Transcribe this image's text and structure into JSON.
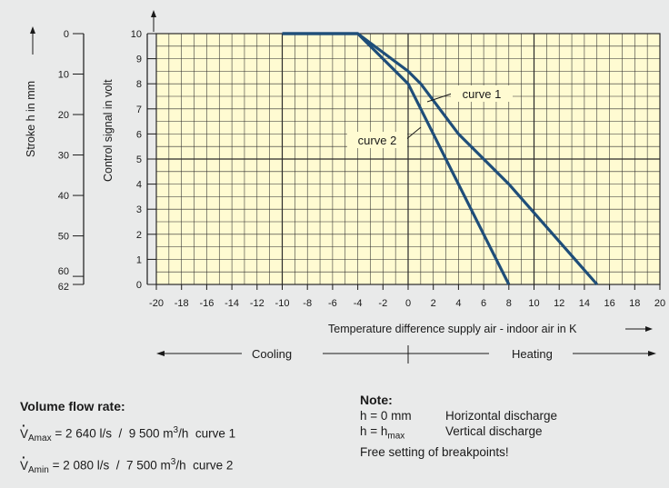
{
  "chart_data": {
    "type": "line",
    "xlabel": "Temperature difference supply air - indoor air in K",
    "ylabel": "Control signal in volt",
    "y2label": "Stroke h in mm",
    "xlim": [
      -20,
      20
    ],
    "ylim": [
      0,
      10
    ],
    "xticks": [
      -20,
      -18,
      -16,
      -14,
      -12,
      -10,
      -8,
      -6,
      -4,
      -2,
      0,
      2,
      4,
      6,
      8,
      10,
      12,
      14,
      16,
      18,
      20
    ],
    "yticks": [
      0,
      1,
      2,
      3,
      4,
      5,
      6,
      7,
      8,
      9,
      10
    ],
    "stroke_ticks": [
      "0",
      "10",
      "20",
      "30",
      "40",
      "50",
      "60",
      "62"
    ],
    "grid": true,
    "series": [
      {
        "name": "curve 1",
        "points": [
          [
            -10,
            10
          ],
          [
            -4,
            10
          ],
          [
            0,
            8.5
          ],
          [
            1,
            8
          ],
          [
            4,
            6
          ],
          [
            6,
            5
          ],
          [
            8,
            4
          ],
          [
            15,
            0
          ]
        ]
      },
      {
        "name": "curve 2",
        "points": [
          [
            -10,
            10
          ],
          [
            -4,
            10
          ],
          [
            0,
            8
          ],
          [
            1,
            7
          ],
          [
            3,
            5
          ],
          [
            8,
            0
          ]
        ]
      }
    ],
    "annotations": {
      "curve1": "curve 1",
      "curve2": "curve 2"
    }
  },
  "modes": {
    "cooling": "Cooling",
    "heating": "Heating"
  },
  "flow": {
    "heading": "Volume flow rate:",
    "rows": [
      {
        "sym": "V",
        "sub": "Amax",
        "text": " = 2 640 l/s  /  9 500 m",
        "sup": "3",
        "unit": "/h",
        "curve": "curve 1"
      },
      {
        "sym": "V",
        "sub": "Amin",
        "text": " = 2 080 l/s  /  7 500 m",
        "sup": "3",
        "unit": "/h",
        "curve": "curve 2"
      }
    ]
  },
  "note": {
    "heading": "Note:",
    "line1_a": "h = 0 mm",
    "line1_b": "Horizontal discharge",
    "line2_a": "h = h",
    "line2_sub": "max",
    "line2_b": "Vertical discharge",
    "line3": "Free setting of breakpoints!"
  },
  "colors": {
    "plot_bg": "#fffbd2",
    "grid": "#2a2a2a",
    "curve": "#1f4e79",
    "page_bg": "#e9eaea"
  }
}
